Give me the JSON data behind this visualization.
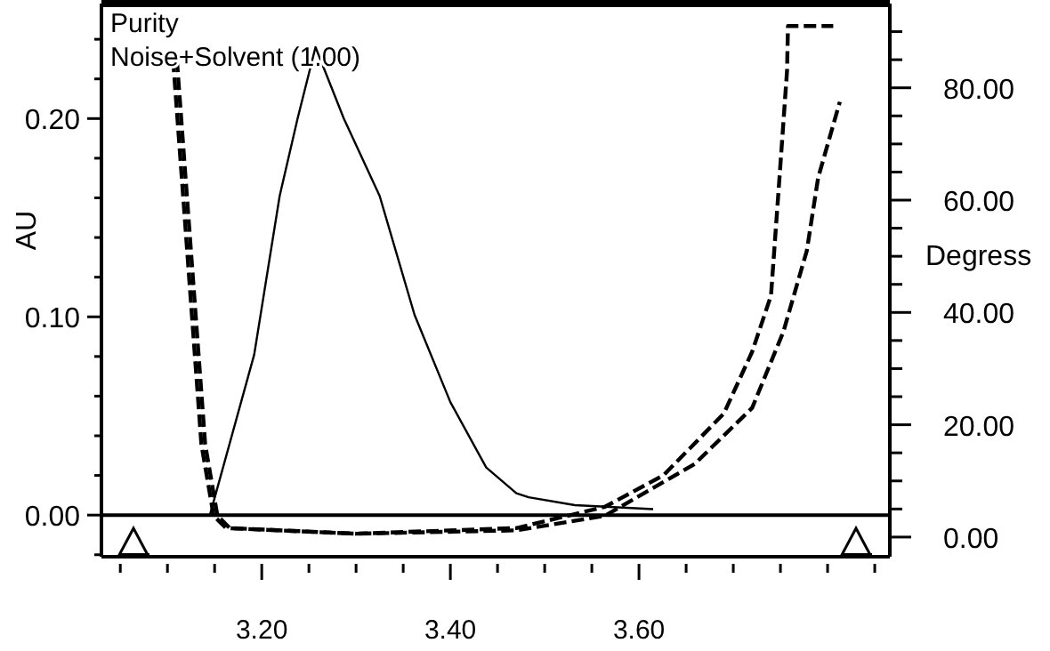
{
  "chart_data": {
    "type": "line",
    "ylabel": "AU",
    "y2label": "Degress",
    "xlim": [
      3.03,
      3.866
    ],
    "xticks": [
      {
        "value": 3.05,
        "label": null
      },
      {
        "value": 3.1,
        "label": null
      },
      {
        "value": 3.15,
        "label": null
      },
      {
        "value": 3.2,
        "label": "3.20"
      },
      {
        "value": 3.25,
        "label": null
      },
      {
        "value": 3.3,
        "label": null
      },
      {
        "value": 3.35,
        "label": null
      },
      {
        "value": 3.4,
        "label": "3.40"
      },
      {
        "value": 3.45,
        "label": null
      },
      {
        "value": 3.5,
        "label": null
      },
      {
        "value": 3.55,
        "label": null
      },
      {
        "value": 3.6,
        "label": "3.60"
      },
      {
        "value": 3.65,
        "label": null
      },
      {
        "value": 3.7,
        "label": null
      },
      {
        "value": 3.75,
        "label": null
      },
      {
        "value": 3.8,
        "label": null
      },
      {
        "value": 3.85,
        "label": null
      }
    ],
    "ylim": [
      -0.021,
      0.258
    ],
    "yticks": [
      {
        "value": -0.02,
        "label": null
      },
      {
        "value": 0,
        "label": "0.00"
      },
      {
        "value": 0.02,
        "label": null
      },
      {
        "value": 0.04,
        "label": null
      },
      {
        "value": 0.06,
        "label": null
      },
      {
        "value": 0.08,
        "label": null
      },
      {
        "value": 0.1,
        "label": "0.10"
      },
      {
        "value": 0.12,
        "label": null
      },
      {
        "value": 0.14,
        "label": null
      },
      {
        "value": 0.16,
        "label": null
      },
      {
        "value": 0.18,
        "label": null
      },
      {
        "value": 0.2,
        "label": "0.20"
      },
      {
        "value": 0.22,
        "label": null
      },
      {
        "value": 0.24,
        "label": null
      }
    ],
    "y2lim": [
      -3.5,
      95
    ],
    "y2ticks": [
      {
        "value": 0,
        "label": "0.00"
      },
      {
        "value": 5,
        "label": null
      },
      {
        "value": 10,
        "label": null
      },
      {
        "value": 15,
        "label": null
      },
      {
        "value": 20,
        "label": "20.00"
      },
      {
        "value": 25,
        "label": null
      },
      {
        "value": 30,
        "label": null
      },
      {
        "value": 35,
        "label": null
      },
      {
        "value": 40,
        "label": "40.00"
      },
      {
        "value": 45,
        "label": null
      },
      {
        "value": 50,
        "label": null
      },
      {
        "value": 55,
        "label": null
      },
      {
        "value": 60,
        "label": "60.00"
      },
      {
        "value": 65,
        "label": null
      },
      {
        "value": 70,
        "label": null
      },
      {
        "value": 75,
        "label": null
      },
      {
        "value": 80,
        "label": "80.00"
      },
      {
        "value": 85,
        "label": null
      },
      {
        "value": 90,
        "label": null
      }
    ],
    "legend": "top left",
    "grid": false,
    "marker": "none",
    "ref_lines": [
      {
        "axis": "y",
        "value": 0,
        "label": null
      }
    ],
    "series": [
      {
        "color": "#000000",
        "line_style": "solid",
        "x": [
          3.145,
          3.192,
          3.219,
          3.238,
          3.257,
          3.287,
          3.325,
          3.362,
          3.4,
          3.438,
          3.47,
          3.483,
          3.532,
          3.615
        ],
        "values": [
          0,
          0.081,
          0.161,
          0.2,
          0.236,
          0.2,
          0.161,
          0.101,
          0.057,
          0.024,
          0.011,
          0.009,
          0.005,
          0.003
        ]
      },
      {
        "name": "Purity",
        "color": "#000000",
        "axis": "y2",
        "line_style": "dashed",
        "x": [
          3.106,
          3.136,
          3.149,
          3.162,
          3.3,
          3.47,
          3.564,
          3.626,
          3.69,
          3.72,
          3.74,
          3.749,
          3.757,
          3.758,
          3.806
        ],
        "values": [
          85,
          16.5,
          3.8,
          1.6,
          0.6,
          1.6,
          5.4,
          11,
          22,
          33,
          43,
          64,
          83,
          91,
          91
        ]
      },
      {
        "name": "Noise+Solvent (1.00)",
        "color": "#000000",
        "axis": "y2",
        "line_style": "dashed",
        "x": [
          3.11,
          3.14,
          3.153,
          3.166,
          3.3,
          3.47,
          3.564,
          3.659,
          3.72,
          3.753,
          3.778,
          3.79,
          3.813
        ],
        "values": [
          85,
          16.5,
          3.8,
          1.6,
          0.6,
          1.2,
          3.8,
          13,
          23,
          36.5,
          51,
          64,
          77.5
        ]
      }
    ]
  }
}
